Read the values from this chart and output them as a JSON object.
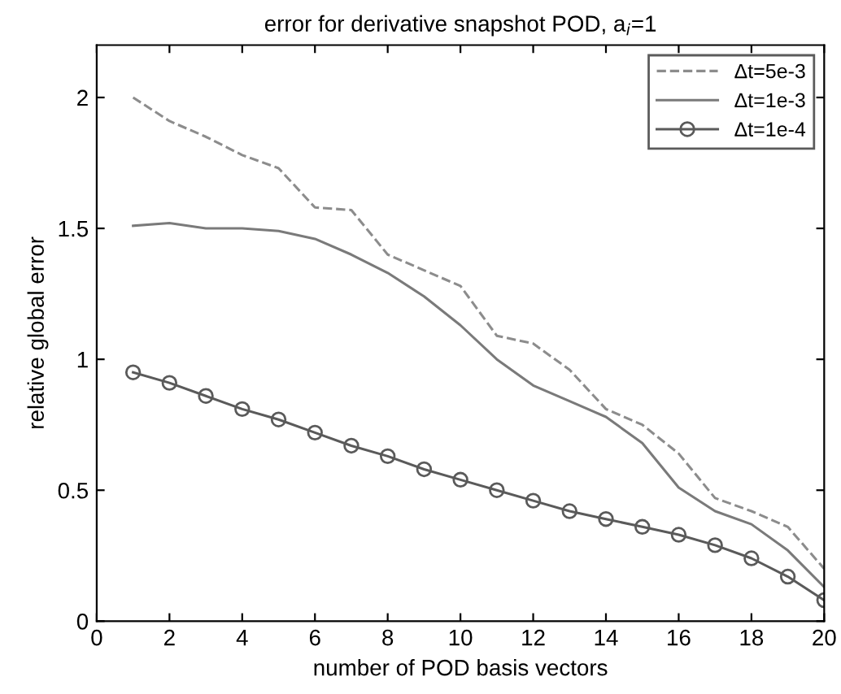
{
  "chart_data": {
    "type": "line",
    "title": "error for derivative snapshot POD, a$_{i}$=1",
    "xlabel": "number of POD basis vectors",
    "ylabel": "relative global error",
    "x": [
      1,
      2,
      3,
      4,
      5,
      6,
      7,
      8,
      9,
      10,
      11,
      12,
      13,
      14,
      15,
      16,
      17,
      18,
      19,
      20
    ],
    "series": [
      {
        "name": "Δt=5e-3",
        "color": "#8c8c8c",
        "line_style": "dashed",
        "marker": "none",
        "values": [
          2.0,
          1.91,
          1.85,
          1.78,
          1.73,
          1.58,
          1.57,
          1.4,
          1.34,
          1.28,
          1.09,
          1.06,
          0.96,
          0.81,
          0.75,
          0.64,
          0.47,
          0.42,
          0.36,
          0.2
        ]
      },
      {
        "name": "Δt=1e-3",
        "color": "#7a7a7a",
        "line_style": "solid",
        "marker": "none",
        "values": [
          1.51,
          1.52,
          1.5,
          1.5,
          1.49,
          1.46,
          1.4,
          1.33,
          1.24,
          1.13,
          1.0,
          0.9,
          0.84,
          0.78,
          0.68,
          0.51,
          0.42,
          0.37,
          0.27,
          0.13
        ]
      },
      {
        "name": "Δt=1e-4",
        "color": "#5a5a5a",
        "line_style": "solid",
        "marker": "circle",
        "values": [
          0.95,
          0.91,
          0.86,
          0.81,
          0.77,
          0.72,
          0.67,
          0.63,
          0.58,
          0.54,
          0.5,
          0.46,
          0.42,
          0.39,
          0.36,
          0.33,
          0.29,
          0.24,
          0.17,
          0.08
        ]
      }
    ],
    "xlim": [
      0,
      20
    ],
    "xticks": [
      {
        "value": 0,
        "label": "0"
      },
      2,
      4,
      6,
      8,
      10,
      12,
      14,
      16,
      18,
      20
    ],
    "ylim": [
      0,
      2.2
    ],
    "yticks": [
      0,
      0.5,
      1,
      1.5,
      2
    ],
    "legend": "top right",
    "grid": false
  }
}
